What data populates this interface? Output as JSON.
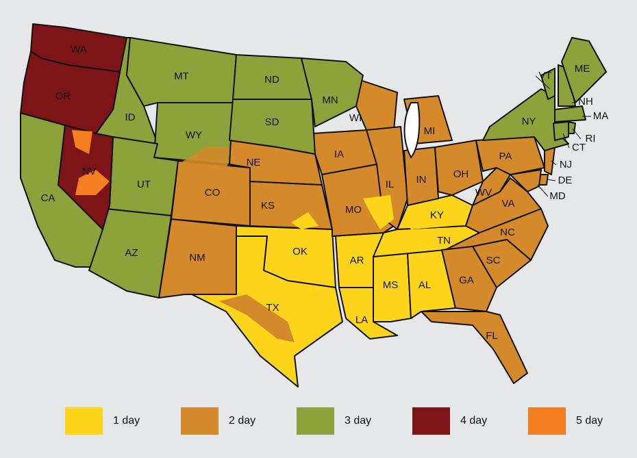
{
  "map": {
    "legend": [
      {
        "label": "1 day",
        "color": "#ffd51c",
        "states": [
          "OK",
          "TX",
          "AR",
          "LA",
          "MS",
          "AL",
          "TN",
          "KY"
        ]
      },
      {
        "label": "2 day",
        "color": "#d4892a",
        "states": [
          "NM",
          "CO",
          "KS",
          "NE",
          "IA",
          "MO",
          "WI",
          "MI",
          "IL",
          "IN",
          "OH",
          "WV",
          "VA",
          "NC",
          "SC",
          "GA",
          "FL",
          "PA",
          "NJ",
          "DE",
          "MD"
        ]
      },
      {
        "label": "3 day",
        "color": "#8da23a",
        "states": [
          "CA",
          "ID",
          "MT",
          "WY",
          "UT",
          "AZ",
          "ND",
          "SD",
          "MN",
          "NY",
          "VT",
          "NH",
          "ME",
          "MA",
          "CT",
          "RI"
        ]
      },
      {
        "label": "4 day",
        "color": "#7d1518",
        "states": [
          "WA",
          "OR",
          "NV"
        ]
      },
      {
        "label": "5 day",
        "color": "#f47f20",
        "states": []
      }
    ]
  }
}
